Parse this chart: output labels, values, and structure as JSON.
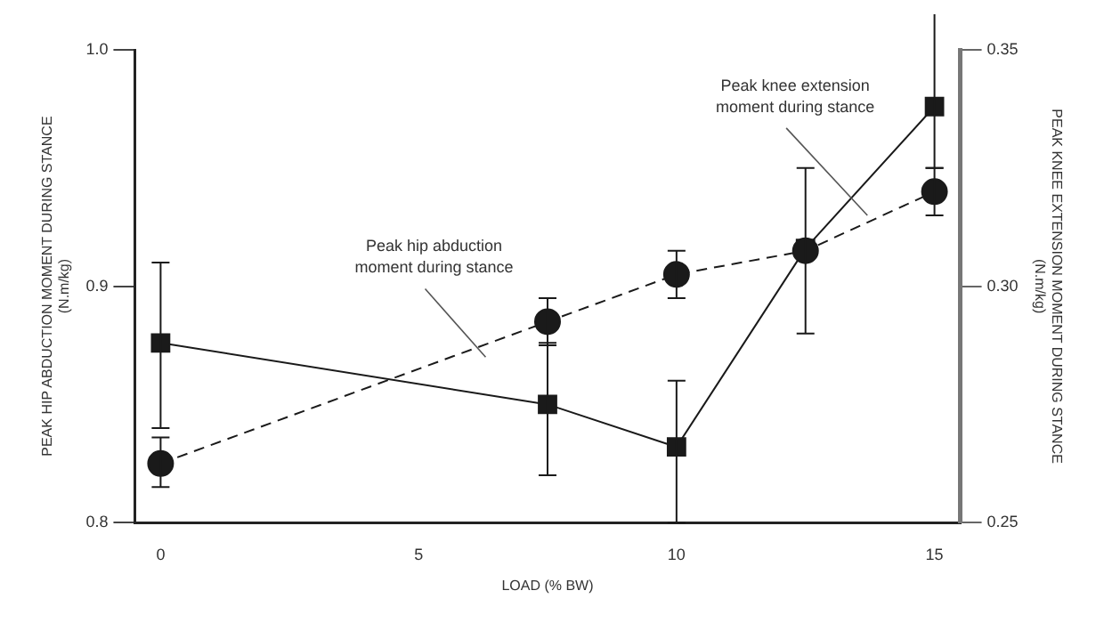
{
  "chart_data": {
    "type": "line",
    "xlabel": "LOAD (% BW)",
    "ylabel": "PEAK HIP ABDUCTION MOMENT DURING STANCE\n(N.m/kg)",
    "y2label": "PEAK KNEE EXTENSION MOMENT DURING STANCE\n(N.m/kg)",
    "xlim": [
      -0.5,
      15.5
    ],
    "xticks": [
      0,
      5,
      10,
      15
    ],
    "ylim": [
      0.8,
      1.0
    ],
    "yticks": [
      0.8,
      0.9,
      {
        "value": 1.0,
        "label": "1.0"
      }
    ],
    "y2lim": [
      0.25,
      0.35
    ],
    "y2ticks": [
      0.25,
      {
        "value": 0.3,
        "label": "0.30"
      },
      0.35
    ],
    "grid": false,
    "legend": false,
    "series": [
      {
        "name": "Peak hip abduction moment during stance",
        "color": "#1a1a1a",
        "marker": "circle",
        "line_style": "dashed",
        "x": [
          0,
          7.5,
          10,
          12.5,
          15
        ],
        "values": [
          0.825,
          0.885,
          0.905,
          0.915,
          0.94
        ],
        "errors": [
          [
            0.815,
            0.836
          ],
          [
            0.875,
            0.895
          ],
          [
            0.895,
            0.915
          ],
          null,
          [
            0.93,
            0.95
          ]
        ]
      },
      {
        "name": "Peak knee extension moment during stance",
        "color": "#1a1a1a",
        "marker": "square",
        "line_style": "solid",
        "axis": "y2",
        "x": [
          0,
          7.5,
          10,
          12.5,
          15
        ],
        "values": [
          0.288,
          0.275,
          0.266,
          0.308,
          0.338
        ],
        "errors": [
          [
            0.27,
            0.305
          ],
          [
            0.26,
            0.288
          ],
          [
            0.25,
            0.28
          ],
          [
            0.29,
            0.325
          ],
          [
            0.325,
            0.358
          ]
        ]
      }
    ]
  }
}
